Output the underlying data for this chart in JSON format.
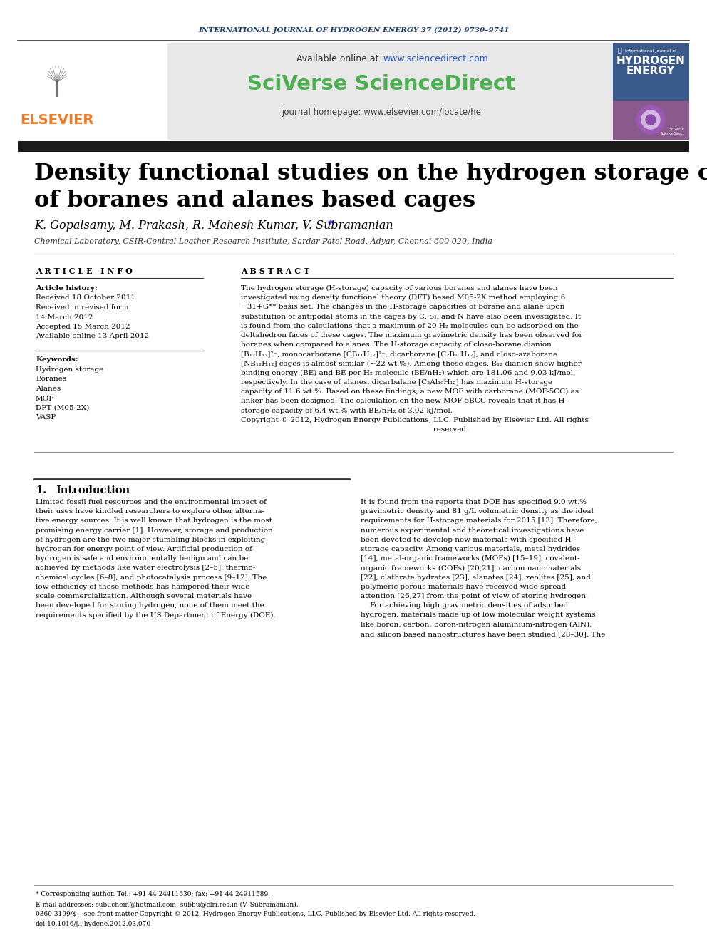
{
  "page_bg": "#ffffff",
  "top_journal_text": "INTERNATIONAL JOURNAL OF HYDROGEN ENERGY 37 (2012) 9730–9741",
  "top_journal_color": "#1a3a6b",
  "sciverse_text": "SciVerse ScienceDirect",
  "sciverse_color": "#4caf50",
  "journal_homepage_text": "journal homepage: www.elsevier.com/locate/he",
  "elsevier_color": "#f47920",
  "elsevier_text": "ELSEVIER",
  "article_title": "Density functional studies on the hydrogen storage capacity\nof boranes and alanes based cages",
  "authors": "K. Gopalsamy, M. Prakash, R. Mahesh Kumar, V. Subramanian",
  "affiliation": "Chemical Laboratory, CSIR-Central Leather Research Institute, Sardar Patel Road, Adyar, Chennai 600 020, India",
  "article_info_header": "A R T I C L E   I N F O",
  "abstract_header": "A B S T R A C T",
  "article_history_label": "Article history:",
  "received1": "Received 18 October 2011",
  "received2": "Received in revised form",
  "march14": "14 March 2012",
  "accepted": "Accepted 15 March 2012",
  "available_online": "Available online 13 April 2012",
  "keywords_label": "Keywords:",
  "keywords": [
    "Hydrogen storage",
    "Boranes",
    "Alanes",
    "MOF",
    "DFT (M05-2X)",
    "VASP"
  ],
  "section1_num": "1.",
  "section1_title": "Introduction",
  "footnote_star": "* Corresponding author. Tel.: +91 44 24411630; fax: +91 44 24911589.",
  "footnote_email": "E-mail addresses: subuchem@hotmail.com, subbu@clri.res.in (V. Subramanian).",
  "footnote_issn": "0360-3199/$ – see front matter Copyright © 2012, Hydrogen Energy Publications, LLC. Published by Elsevier Ltd. All rights reserved.",
  "footnote_doi": "doi:10.1016/j.ijhydene.2012.03.070",
  "abstract_lines": [
    "The hydrogen storage (H-storage) capacity of various boranes and alanes have been",
    "investigated using density functional theory (DFT) based M05-2X method employing 6",
    "−31+G** basis set. The changes in the H-storage capacities of borane and alane upon",
    "substitution of antipodal atoms in the cages by C, Si, and N have also been investigated. It",
    "is found from the calculations that a maximum of 20 H₂ molecules can be adsorbed on the",
    "deltahedron faces of these cages. The maximum gravimetric density has been observed for",
    "boranes when compared to alanes. The H-storage capacity of closo-borane dianion",
    "[B₁₂H₁₂]²⁻, monocarborane [CB₁₁H₁₂]¹⁻, dicarborane [C₂B₁₀H₁₂], and closo-azaborane",
    "[NB₁₁H₁₂] cages is almost similar (~22 wt.%). Among these cages, B₁₂ dianion show higher",
    "binding energy (BE) and BE per H₂ molecule (BE/nH₂) which are 181.06 and 9.03 kJ/mol,",
    "respectively. In the case of alanes, dicarbalane [C₂Al₁₀H₁₂] has maximum H-storage",
    "capacity of 11.6 wt.%. Based on these findings, a new MOF with carborane (MOF-5CC) as",
    "linker has been designed. The calculation on the new MOF-5BCC reveals that it has H-",
    "storage capacity of 6.4 wt.% with BE/nH₂ of 3.02 kJ/mol.",
    "Copyright © 2012, Hydrogen Energy Publications, LLC. Published by Elsevier Ltd. All rights",
    "                                                                                   reserved."
  ],
  "intro_left_lines": [
    "Limited fossil fuel resources and the environmental impact of",
    "their uses have kindled researchers to explore other alterna-",
    "tive energy sources. It is well known that hydrogen is the most",
    "promising energy carrier [1]. However, storage and production",
    "of hydrogen are the two major stumbling blocks in exploiting",
    "hydrogen for energy point of view. Artificial production of",
    "hydrogen is safe and environmentally benign and can be",
    "achieved by methods like water electrolysis [2–5], thermo-",
    "chemical cycles [6–8], and photocatalysis process [9–12]. The",
    "low efficiency of these methods has hampered their wide",
    "scale commercialization. Although several materials have",
    "been developed for storing hydrogen, none of them meet the",
    "requirements specified by the US Department of Energy (DOE)."
  ],
  "intro_right_lines": [
    "It is found from the reports that DOE has specified 9.0 wt.%",
    "gravimetric density and 81 g/L volumetric density as the ideal",
    "requirements for H-storage materials for 2015 [13]. Therefore,",
    "numerous experimental and theoretical investigations have",
    "been devoted to develop new materials with specified H-",
    "storage capacity. Among various materials, metal hydrides",
    "[14], metal-organic frameworks (MOFs) [15–19], covalent-",
    "organic frameworks (COFs) [20,21], carbon nanomaterials",
    "[22], clathrate hydrates [23], alanates [24], zeolites [25], and",
    "polymeric porous materials have received wide-spread",
    "attention [26,27] from the point of view of storing hydrogen.",
    "    For achieving high gravimetric densities of adsorbed",
    "hydrogen, materials made up of low molecular weight systems",
    "like boron, carbon, boron-nitrogen aluminium-nitrogen (AlN),",
    "and silicon based nanostructures have been studied [28–30]. The"
  ]
}
